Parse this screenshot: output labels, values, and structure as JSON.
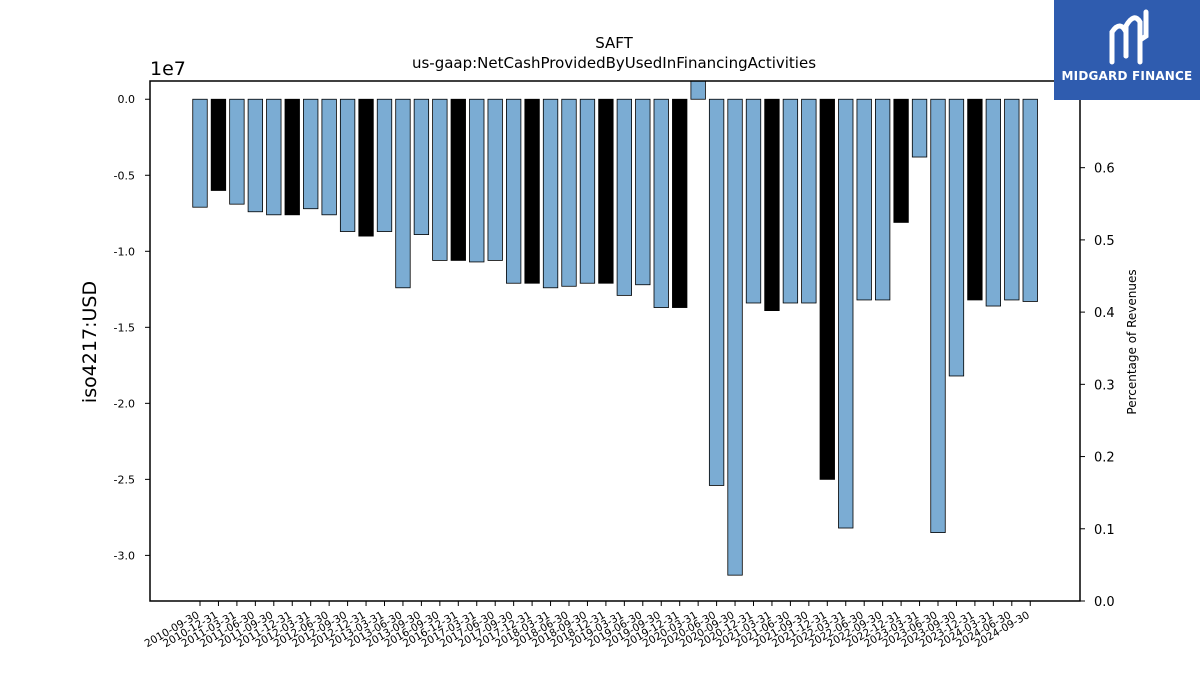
{
  "chart_data": {
    "type": "bar",
    "title": "SAFT",
    "subtitle": "us-gaap:NetCashProvidedByUsedInFinancingActivities",
    "ylabel": "iso4217:USD",
    "y_multiplier": "1e7",
    "y2label": "Percentage of Revenues",
    "ylim": [
      -3.3,
      0.12
    ],
    "y2lim": [
      0.0,
      0.72
    ],
    "y_ticks": [
      "0.0",
      "-0.5",
      "-1.0",
      "-1.5",
      "-2.0",
      "-2.5",
      "-3.0"
    ],
    "y2_ticks": [
      "0.0",
      "0.1",
      "0.2",
      "0.3",
      "0.4",
      "0.5",
      "0.6"
    ],
    "categories": [
      "2010-09-30",
      "2010-12-31",
      "2011-03-31",
      "2011-06-30",
      "2011-09-30",
      "2011-12-31",
      "2012-03-31",
      "2012-06-30",
      "2012-09-30",
      "2012-12-31",
      "2013-03-31",
      "2013-06-30",
      "2013-09-30",
      "2016-09-30",
      "2016-12-31",
      "2017-03-31",
      "2017-06-30",
      "2017-09-30",
      "2017-12-31",
      "2018-03-31",
      "2018-06-30",
      "2018-09-30",
      "2018-12-31",
      "2019-03-31",
      "2019-06-30",
      "2019-09-30",
      "2019-12-31",
      "2020-03-31",
      "2020-06-30",
      "2020-09-30",
      "2020-12-31",
      "2021-03-31",
      "2021-06-30",
      "2021-09-30",
      "2021-12-31",
      "2022-03-31",
      "2022-06-30",
      "2022-09-30",
      "2022-12-31",
      "2023-03-31",
      "2023-06-30",
      "2023-09-30",
      "2023-12-31",
      "2024-03-31",
      "2024-06-30",
      "2024-09-30"
    ],
    "values": [
      -0.71,
      -0.6,
      -0.69,
      -0.74,
      -0.76,
      -0.76,
      -0.72,
      -0.76,
      -0.87,
      -0.9,
      -0.87,
      -1.24,
      -0.89,
      -1.06,
      -1.06,
      -1.07,
      -1.06,
      -1.21,
      -1.21,
      -1.24,
      -1.23,
      -1.21,
      -1.21,
      -1.29,
      -1.22,
      -1.37,
      -1.37,
      0.12,
      -2.54,
      -3.13,
      -1.34,
      -1.39,
      -1.34,
      -1.34,
      -2.5,
      -2.82,
      -1.32,
      -1.32,
      -0.81,
      -0.38,
      -2.85,
      -1.82,
      -1.32,
      -1.36,
      -1.32,
      -1.33
    ],
    "highlight": [
      false,
      true,
      false,
      false,
      false,
      true,
      false,
      false,
      false,
      true,
      false,
      false,
      false,
      false,
      true,
      false,
      false,
      false,
      true,
      false,
      false,
      false,
      true,
      false,
      false,
      false,
      true,
      false,
      false,
      false,
      false,
      true,
      false,
      false,
      true,
      false,
      false,
      false,
      true,
      false,
      false,
      false,
      true,
      false,
      false,
      false
    ],
    "colors": {
      "bar": "#7bacd3",
      "highlight": "#000000",
      "edge": "#000000"
    }
  },
  "logo": {
    "text": "MIDGARD FINANCE"
  }
}
